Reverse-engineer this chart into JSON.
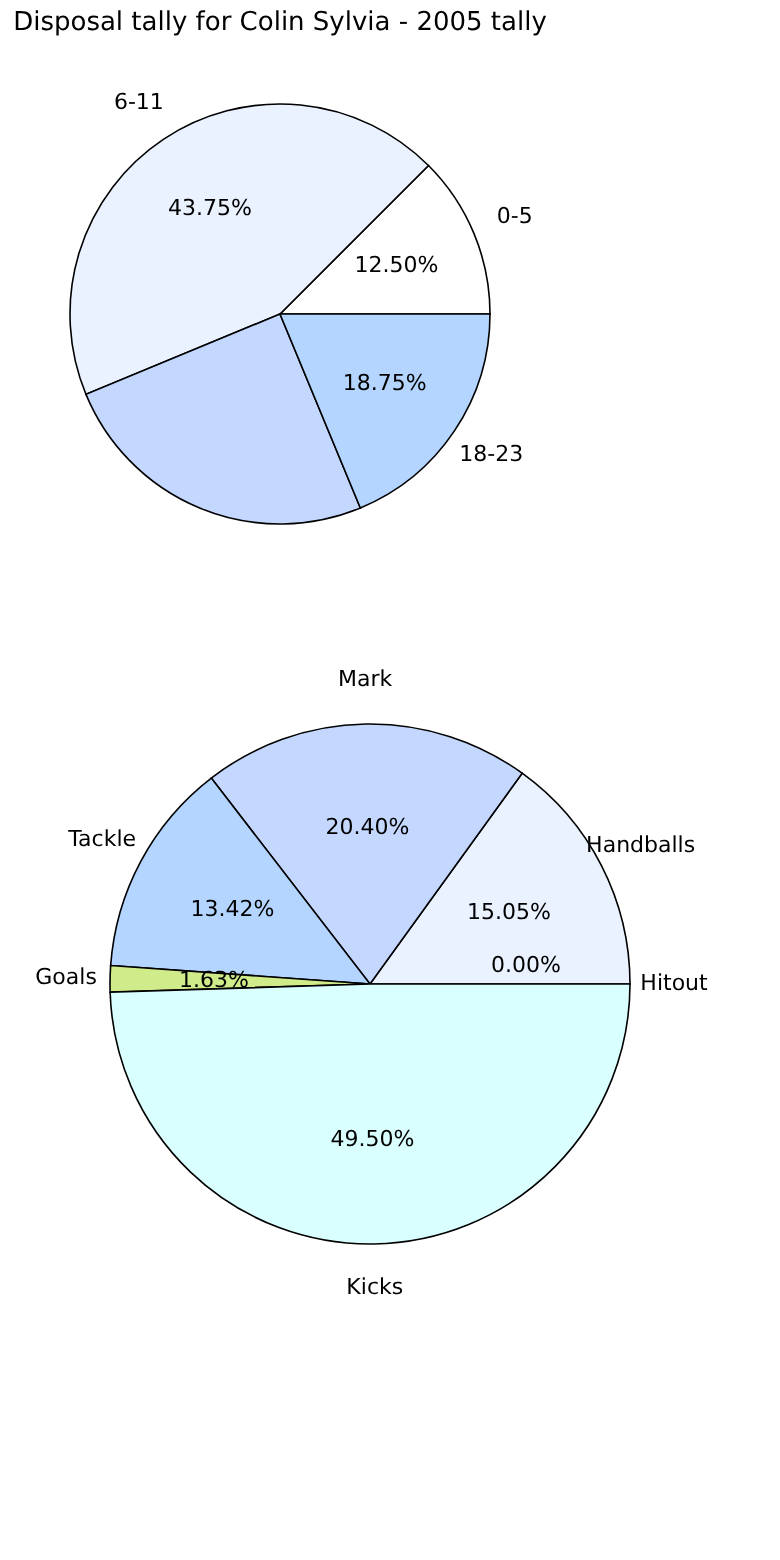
{
  "chart_data": [
    {
      "type": "pie",
      "title": "Disposal tally for Colin Sylvia - 2005 tally",
      "categories": [
        "0-5",
        "6-11",
        null,
        "18-23"
      ],
      "values": [
        12.5,
        43.75,
        25,
        18.75
      ],
      "colors": [
        "#ffffff",
        "#eaf1ff",
        "#c4d8ff",
        "#b3d5ff"
      ],
      "value_labels": [
        "12.50%",
        "43.75%",
        null,
        "18.75%"
      ],
      "legend": false
    },
    {
      "type": "pie",
      "categories": [
        "Hitout",
        "Handballs",
        "Mark",
        "Tackle",
        "Goals",
        "Kicks"
      ],
      "values": [
        0.0,
        15.05,
        20.4,
        13.42,
        1.63,
        49.5
      ],
      "colors": [
        "#ffffff",
        "#eaf1ff",
        "#c4d8ff",
        "#b3d5ff",
        "#d0eb8a",
        "#d9ffff"
      ],
      "value_labels": [
        "0.00%",
        "15.05%",
        "20.40%",
        "13.42%",
        "1.63%",
        "49.50%"
      ],
      "legend": false
    }
  ]
}
